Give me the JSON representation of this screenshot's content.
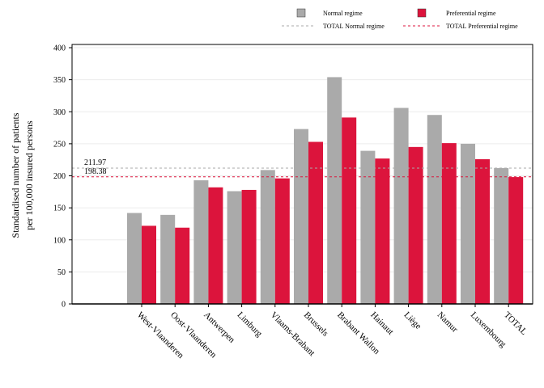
{
  "chart_data": {
    "type": "bar",
    "categories": [
      "West-Vlaanderen",
      "Oost-Vlaanderen",
      "Antwerpen",
      "Limburg",
      "Vlaams-Brabant",
      "Brussels",
      "Brabant Wallon",
      "Hainaut",
      "Liège",
      "Namur",
      "Luxembourg",
      "TOTAL"
    ],
    "series": [
      {
        "name": "Normal regime",
        "color": "#aaaaaa",
        "values": [
          142,
          139,
          193,
          176,
          209,
          273,
          354,
          239,
          306,
          295,
          250,
          212
        ]
      },
      {
        "name": "Preferential regime",
        "color": "#dc143c",
        "values": [
          122,
          119,
          182,
          178,
          196,
          253,
          291,
          227,
          245,
          251,
          226,
          198
        ]
      }
    ],
    "reference_lines": [
      {
        "name": "TOTAL Normal regime",
        "value": 211.97,
        "label": "211.97",
        "color": "#aaaaaa",
        "style": "dashed"
      },
      {
        "name": "TOTAL Preferential regime",
        "value": 198.38,
        "label": "198.38",
        "color": "#dc143c",
        "style": "dashed"
      }
    ],
    "ylabel_line1": "Standardised number of patients",
    "ylabel_line2": "per 100,000 insured persons",
    "xlabel": "",
    "ylim": [
      0,
      400
    ],
    "yticks": [
      0,
      50,
      100,
      150,
      200,
      250,
      300,
      350,
      400
    ],
    "grid": "horizontal",
    "legend_position": "top-right"
  }
}
